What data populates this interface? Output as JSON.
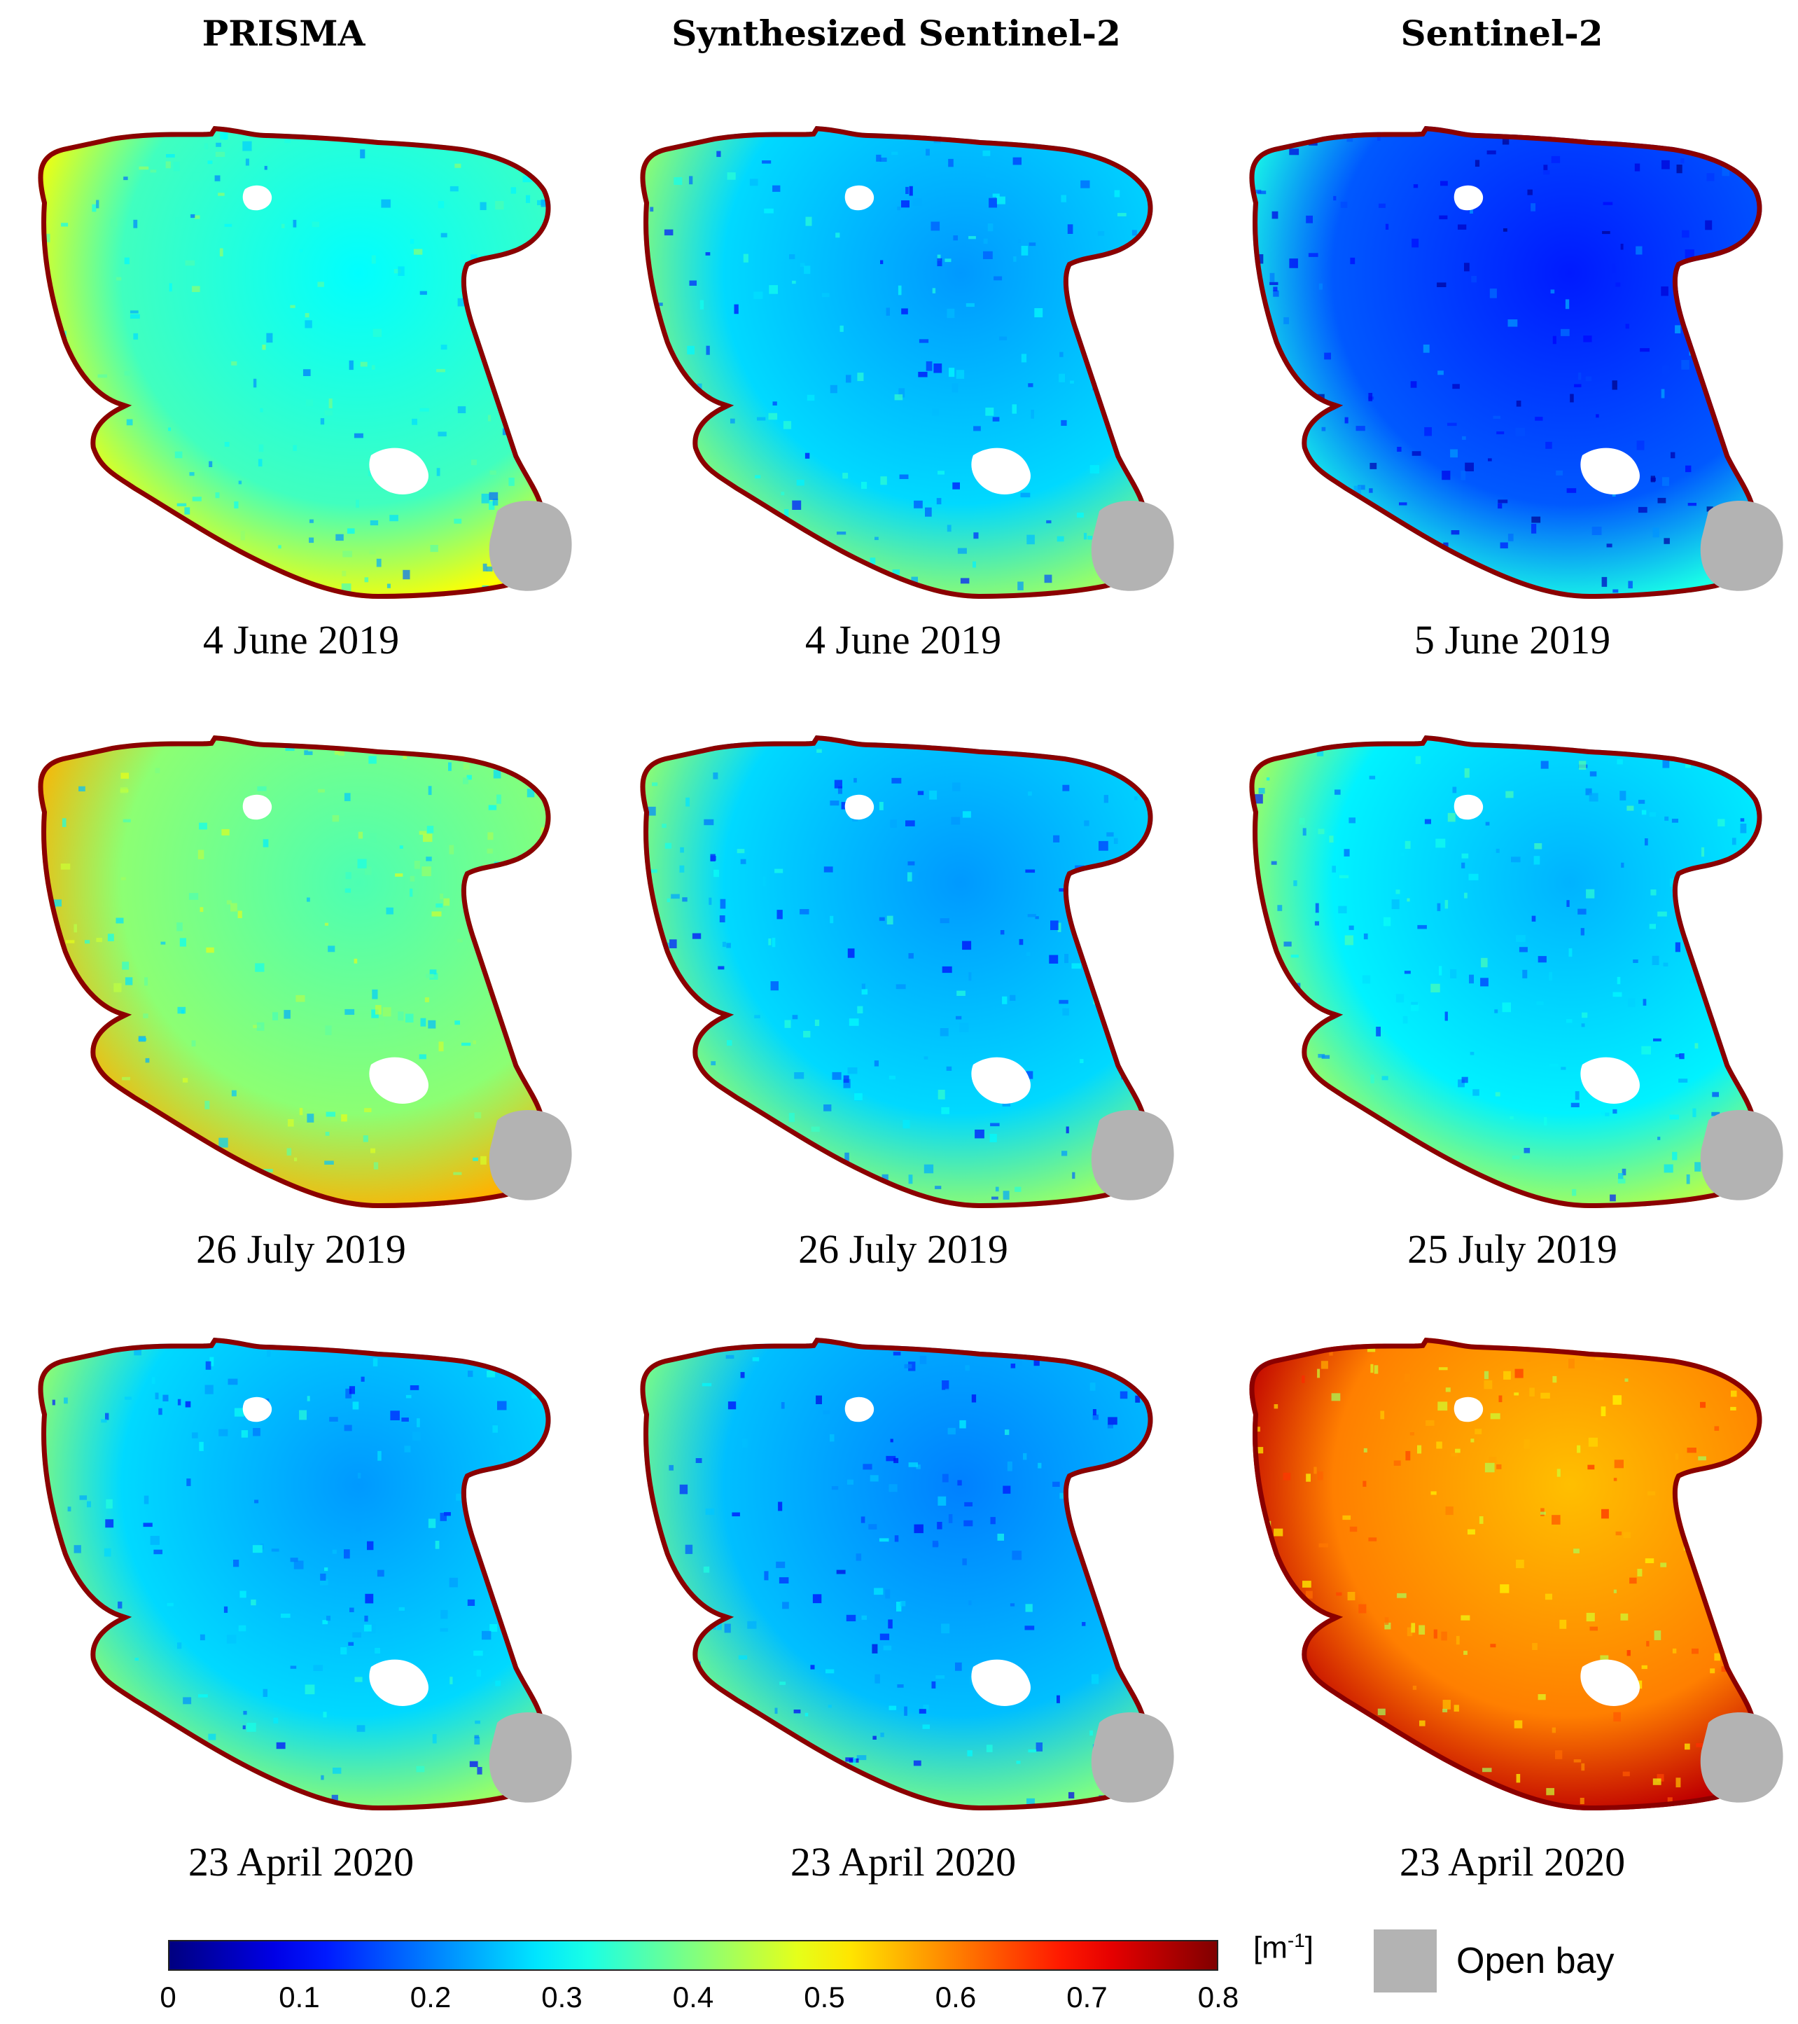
{
  "columns": [
    {
      "header": "PRISMA"
    },
    {
      "header": "Synthesized Sentinel-2"
    },
    {
      "header": "Sentinel-2"
    }
  ],
  "rows": [
    {
      "dates": [
        "4 June 2019",
        "4 June 2019",
        "5 June 2019"
      ],
      "mean_levels": [
        0.3,
        0.22,
        0.12
      ]
    },
    {
      "dates": [
        "26 July 2019",
        "26 July 2019",
        "25 July 2019"
      ],
      "mean_levels": [
        0.36,
        0.22,
        0.24
      ]
    },
    {
      "dates": [
        "23 April 2020",
        "23 April 2020",
        "23 April 2020"
      ],
      "mean_levels": [
        0.22,
        0.2,
        0.55
      ]
    }
  ],
  "colorbar": {
    "unit_base": "[m",
    "unit_exp": "-1",
    "unit_close": "]",
    "min": 0,
    "max": 0.8,
    "ticks": [
      "0",
      "0.1",
      "0.2",
      "0.3",
      "0.4",
      "0.5",
      "0.6",
      "0.7",
      "0.8"
    ],
    "colormap": "jet"
  },
  "legend": {
    "label": "Open bay",
    "color": "#b3b3b3"
  },
  "colors": {
    "edge": "#8b0000",
    "land_hole": "#ffffff"
  }
}
